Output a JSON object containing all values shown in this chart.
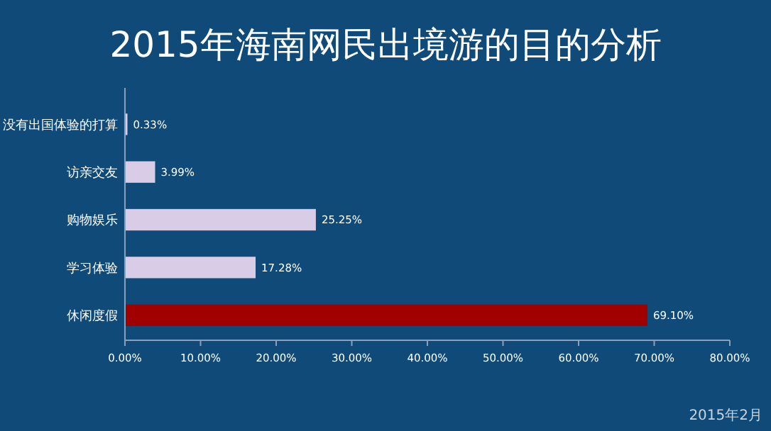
{
  "chart_data": {
    "type": "bar",
    "orientation": "horizontal",
    "title": "2015年海南网民出境游的目的分析",
    "categories": [
      "没有出国体验的打算",
      "访亲交友",
      "购物娱乐",
      "学习体验",
      "休闲度假"
    ],
    "values": [
      0.33,
      3.99,
      25.25,
      17.28,
      69.1
    ],
    "colors": [
      "#d8cce6",
      "#d8cce6",
      "#d8cce6",
      "#d8cce6",
      "#a00000"
    ],
    "value_labels": [
      "0.33%",
      "3.99%",
      "25.25%",
      "17.28%",
      "69.10%"
    ],
    "xlim": [
      0,
      80
    ],
    "xticks": [
      {
        "value": 0,
        "label": "0.00%"
      },
      {
        "value": 10,
        "label": "10.00%"
      },
      {
        "value": 20,
        "label": "20.00%"
      },
      {
        "value": 30,
        "label": "30.00%"
      },
      {
        "value": 40,
        "label": "40.00%"
      },
      {
        "value": 50,
        "label": "50.00%"
      },
      {
        "value": 60,
        "label": "60.00%"
      },
      {
        "value": 70,
        "label": "70.00%"
      },
      {
        "value": 80,
        "label": "80.00%"
      }
    ],
    "annotations": [
      "2015年2月"
    ]
  }
}
